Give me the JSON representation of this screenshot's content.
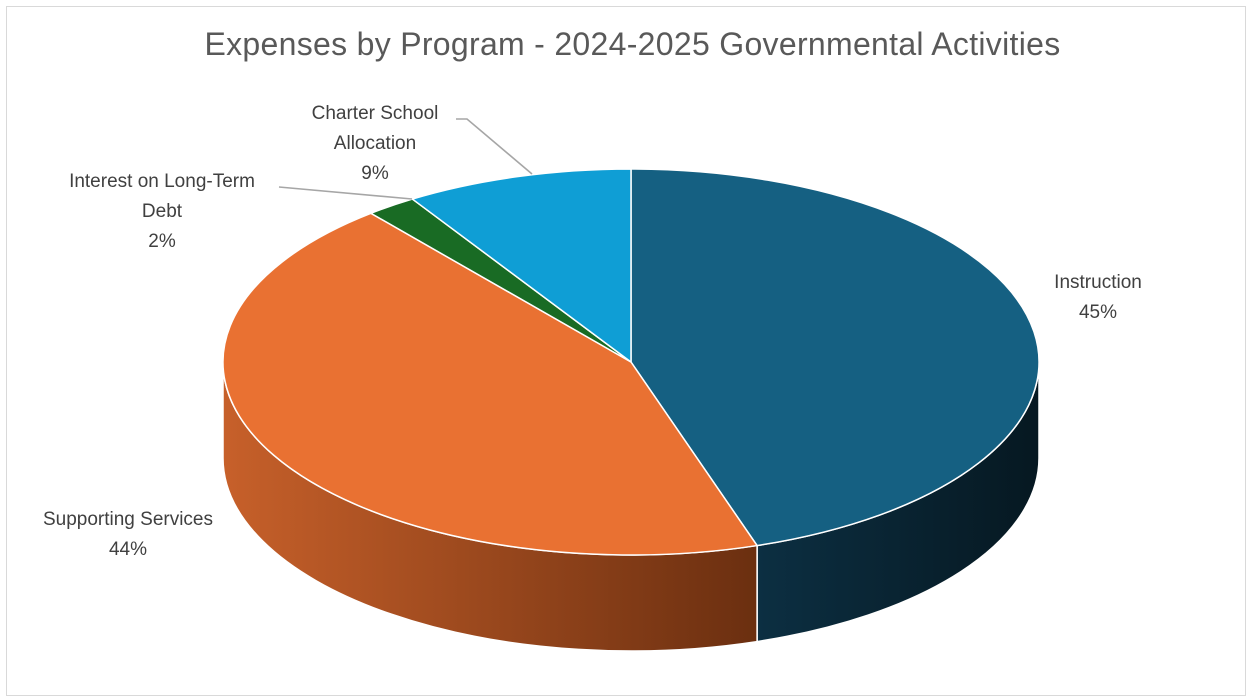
{
  "chart_data": {
    "type": "pie",
    "title": "Expenses by Program - 2024-2025 Governmental Activities",
    "slices": [
      {
        "name": "Instruction",
        "value": 45,
        "label": "45%",
        "color": "#156082",
        "side_color": "#0b2a3a",
        "label_lines": [
          "Instruction"
        ]
      },
      {
        "name": "Supporting Services",
        "value": 44,
        "label": "44%",
        "color": "#e97132",
        "side_color": "#8a3f17",
        "label_lines": [
          "Supporting Services"
        ]
      },
      {
        "name": "Interest on Long-Term Debt",
        "value": 2,
        "label": "2%",
        "color": "#196b24",
        "side_color": "#0e3d14",
        "label_lines": [
          "Interest on Long-Term",
          "Debt"
        ]
      },
      {
        "name": "Charter School Allocation",
        "value": 9,
        "label": "9%",
        "color": "#0f9ed5",
        "side_color": "#085a7a",
        "label_lines": [
          "Charter School",
          "Allocation"
        ]
      }
    ],
    "start_angle_deg": 0,
    "direction": "clockwise",
    "three_d": true,
    "legend": "none"
  }
}
